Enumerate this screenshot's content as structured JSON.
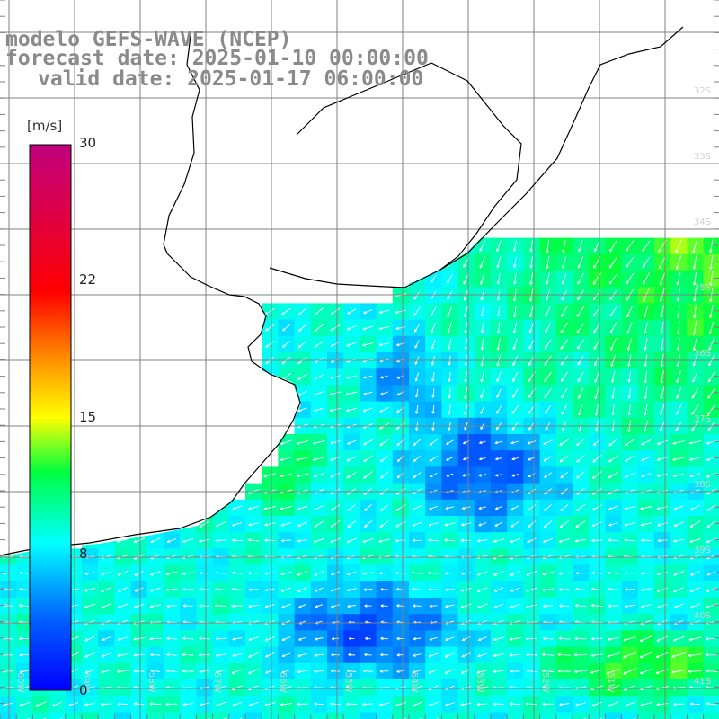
{
  "header": {
    "line1": "modelo GEFS-WAVE (NCEP)",
    "line2": "forecast date: 2025-01-10 00:00:00",
    "line3": "valid date: 2025-01-17 06:00:00"
  },
  "colorbar": {
    "unit": "[m/s]",
    "ticks": [
      "30",
      "22",
      "15",
      "8",
      "0"
    ],
    "range": [
      0,
      30
    ],
    "colors": [
      "#0000ff",
      "#00a0ff",
      "#00ffff",
      "#00ff00",
      "#ffff00",
      "#ff8000",
      "#ff0000",
      "#c00080"
    ]
  },
  "map": {
    "lat_labels": [
      "32S",
      "33S",
      "34S",
      "35S",
      "36S",
      "37S",
      "38S",
      "39S",
      "40S",
      "41S"
    ],
    "lon_labels": [
      "60W",
      "59W",
      "58W",
      "57W",
      "56W",
      "55W",
      "54W",
      "53W",
      "52W",
      "51W"
    ],
    "land_color": "#ffffff",
    "grid_color": "#808080",
    "coast_color": "#000000"
  }
}
